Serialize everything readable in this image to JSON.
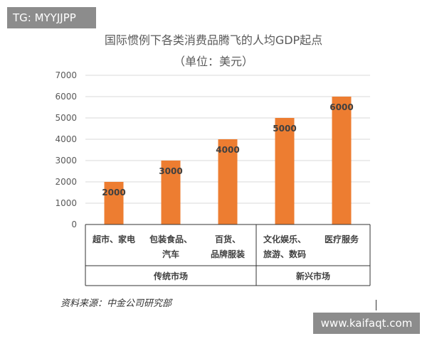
{
  "tag": "TG: MYYJJPP",
  "watermark": "www.kaifaqt.com",
  "source": "资料来源：中金公司研究部",
  "colors": {
    "bar": "#ed7d31",
    "grid": "#d9d9d9",
    "text": "#595959",
    "label": "#404040"
  },
  "chart_data": {
    "type": "bar",
    "title": "国际惯例下各类消费品腾飞的人均GDP起点",
    "subtitle": "（单位：美元）",
    "categories": [
      "超市、家电",
      "包装食品、汽车",
      "百货、品牌服装",
      "文化娱乐、旅游、数码",
      "医疗服务"
    ],
    "category_lines": [
      [
        "超市、家电"
      ],
      [
        "包装食品、",
        "汽车"
      ],
      [
        "百货、",
        "品牌服装"
      ],
      [
        "文化娱乐、",
        "旅游、数码"
      ],
      [
        "医疗服务"
      ]
    ],
    "values": [
      2000,
      3000,
      4000,
      5000,
      6000
    ],
    "data_labels": [
      "2000",
      "3000",
      "4000",
      "5000",
      "6000"
    ],
    "yticks": [
      0,
      1000,
      2000,
      3000,
      4000,
      5000,
      6000,
      7000
    ],
    "ylim": [
      0,
      7000
    ],
    "grid": true,
    "groups": [
      {
        "label": "传统市场",
        "span": 3
      },
      {
        "label": "新兴市场",
        "span": 2
      }
    ]
  }
}
